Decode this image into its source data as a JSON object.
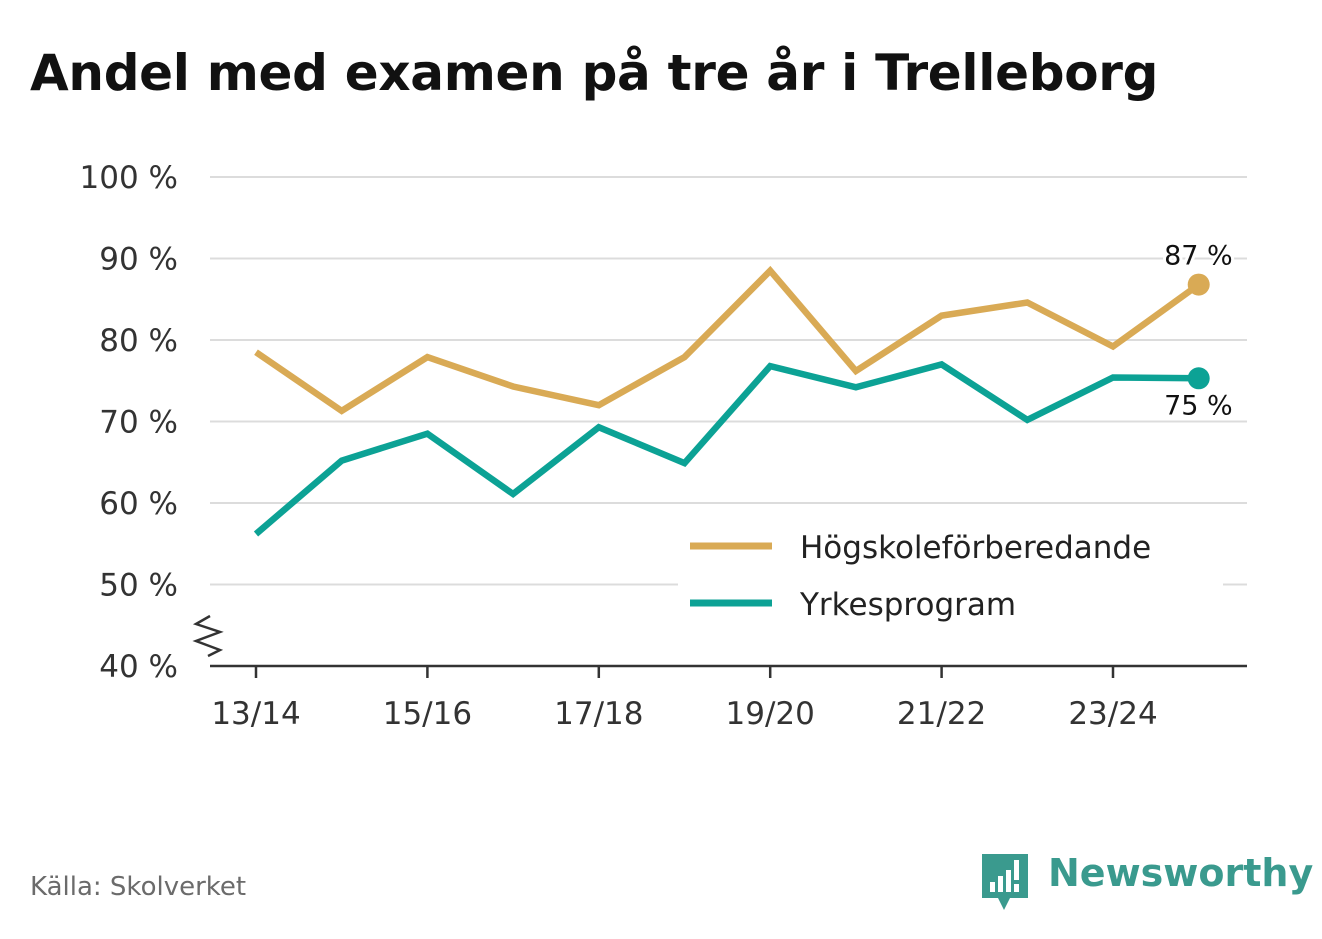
{
  "title": "Andel med examen på tre år i Trelleborg",
  "source": "Källa: Skolverket",
  "brand": {
    "name": "Newsworthy",
    "color": "#3a9a8e",
    "icon": "newsworthy-logo-icon"
  },
  "chart_data": {
    "type": "line",
    "title": "Andel med examen på tre år i Trelleborg",
    "xlabel": "",
    "ylabel": "",
    "x": [
      "13/14",
      "14/15",
      "15/16",
      "16/17",
      "17/18",
      "18/19",
      "19/20",
      "20/21",
      "21/22",
      "22/23",
      "23/24",
      "24/25"
    ],
    "x_tick_labels": [
      "13/14",
      "15/16",
      "17/18",
      "19/20",
      "21/22",
      "23/24"
    ],
    "ylim": [
      40,
      100
    ],
    "y_ticks": [
      40,
      50,
      60,
      70,
      80,
      90,
      100
    ],
    "y_tick_labels": [
      "40 %",
      "50 %",
      "60 %",
      "70 %",
      "80 %",
      "90 %",
      "100 %"
    ],
    "y_axis_break": true,
    "grid": true,
    "legend_position": "bottom-right",
    "series": [
      {
        "name": "Högskoleförberedande",
        "color": "#d9aa55",
        "values": [
          78.5,
          71.3,
          77.9,
          74.3,
          72.0,
          77.9,
          88.5,
          76.2,
          83.0,
          84.6,
          79.2,
          86.8
        ],
        "end_label": "87 %"
      },
      {
        "name": "Yrkesprogram",
        "color": "#0ca295",
        "values": [
          56.2,
          65.2,
          68.5,
          61.1,
          69.3,
          64.9,
          76.8,
          74.2,
          77.0,
          70.2,
          75.4,
          75.3
        ],
        "end_label": "75 %"
      }
    ]
  }
}
